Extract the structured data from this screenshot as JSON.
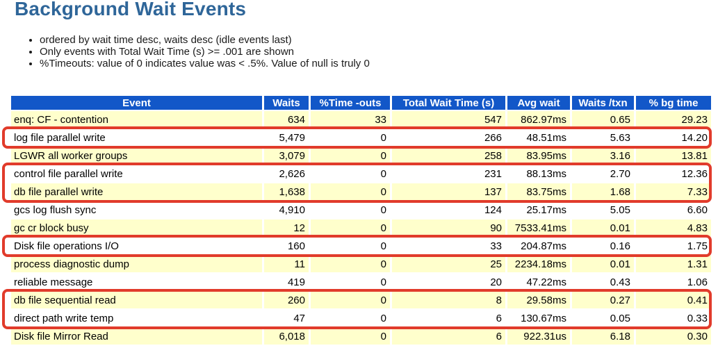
{
  "report": {
    "title": "Background Wait Events",
    "notes": [
      "ordered by wait time desc, waits desc (idle events last)",
      "Only events with Total Wait Time (s) >= .001 are shown",
      "%Timeouts: value of 0 indicates value was < .5%. Value of null is truly 0"
    ]
  },
  "colors": {
    "title_text": "#2f6699",
    "header_bg": "#1257c8",
    "header_text": "#ffffff",
    "row_odd_bg": "#ffffcc",
    "row_even_bg": "#ffffff",
    "highlight_border": "#e13b2b"
  },
  "table": {
    "columns": [
      "Event",
      "Waits",
      "%Time -outs",
      "Total Wait Time (s)",
      "Avg wait",
      "Waits /txn",
      "% bg time"
    ],
    "rows": [
      [
        "enq: CF - contention",
        "634",
        "33",
        "547",
        "862.97ms",
        "0.65",
        "29.23"
      ],
      [
        "log file parallel write",
        "5,479",
        "0",
        "266",
        "48.51ms",
        "5.63",
        "14.20"
      ],
      [
        "LGWR all worker groups",
        "3,079",
        "0",
        "258",
        "83.95ms",
        "3.16",
        "13.81"
      ],
      [
        "control file parallel write",
        "2,626",
        "0",
        "231",
        "88.13ms",
        "2.70",
        "12.36"
      ],
      [
        "db file parallel write",
        "1,638",
        "0",
        "137",
        "83.75ms",
        "1.68",
        "7.33"
      ],
      [
        "gcs log flush sync",
        "4,910",
        "0",
        "124",
        "25.17ms",
        "5.05",
        "6.60"
      ],
      [
        "gc cr block busy",
        "12",
        "0",
        "90",
        "7533.41ms",
        "0.01",
        "4.83"
      ],
      [
        "Disk file operations I/O",
        "160",
        "0",
        "33",
        "204.87ms",
        "0.16",
        "1.75"
      ],
      [
        "process diagnostic dump",
        "11",
        "0",
        "25",
        "2234.18ms",
        "0.01",
        "1.31"
      ],
      [
        "reliable message",
        "419",
        "0",
        "20",
        "47.22ms",
        "0.43",
        "1.06"
      ],
      [
        "db file sequential read",
        "260",
        "0",
        "8",
        "29.58ms",
        "0.27",
        "0.41"
      ],
      [
        "direct path write temp",
        "47",
        "0",
        "6",
        "130.67ms",
        "0.05",
        "0.33"
      ],
      [
        "Disk file Mirror Read",
        "6,018",
        "0",
        "6",
        "922.31us",
        "6.18",
        "0.30"
      ]
    ],
    "highlight_groups": [
      [
        2
      ],
      [
        4,
        5
      ],
      [
        8
      ],
      [
        11,
        12
      ]
    ]
  }
}
